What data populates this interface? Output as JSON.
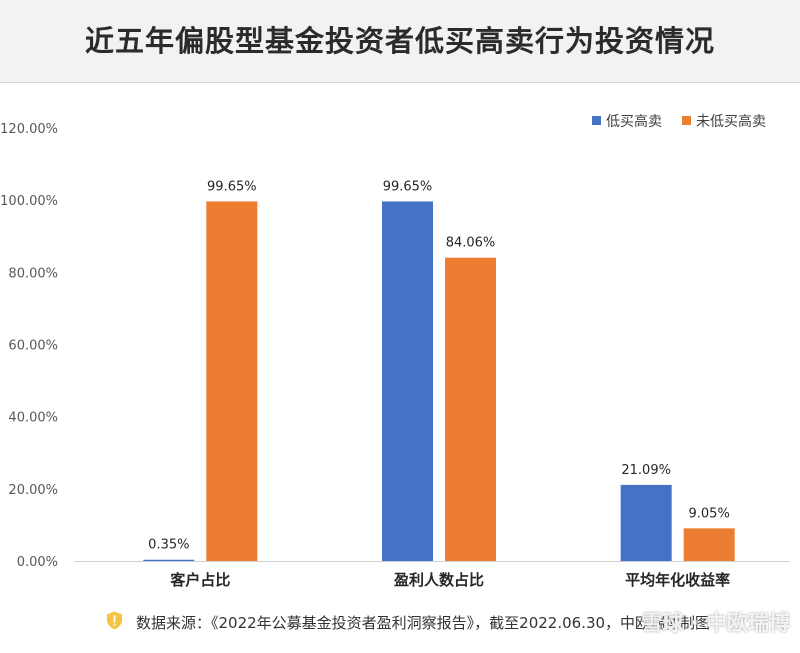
{
  "title": "近五年偏股型基金投资者低买高卖行为投资情况",
  "chart_data": {
    "type": "bar",
    "title": "近五年偏股型基金投资者低买高卖行为投资情况",
    "categories": [
      "客户占比",
      "盈利人数占比",
      "平均年化收益率"
    ],
    "series": [
      {
        "name": "低买高卖",
        "color": "#4472c4",
        "values": [
          0.35,
          99.65,
          21.09
        ],
        "labels": [
          "0.35%",
          "99.65%",
          "21.09%"
        ]
      },
      {
        "name": "未低买高卖",
        "color": "#ed7d31",
        "values": [
          99.65,
          84.06,
          9.05
        ],
        "labels": [
          "99.65%",
          "84.06%",
          "9.05%"
        ]
      }
    ],
    "yticks": [
      "0.00%",
      "20.00%",
      "40.00%",
      "60.00%",
      "80.00%",
      "100.00%",
      "120.00%"
    ],
    "ylim": [
      0,
      120
    ],
    "xlabel": "",
    "ylabel": "",
    "legend": "top-right",
    "grid": false
  },
  "footer": {
    "source": "数据来源：《2022年公募基金投资者盈利洞察报告》，截至2022.06.30，中欧瑞博制图",
    "watermark": "雪球 · 中欧瑞博"
  },
  "colors": {
    "header_bg": "#f2f2f2",
    "warn_icon": "#f5c342"
  }
}
